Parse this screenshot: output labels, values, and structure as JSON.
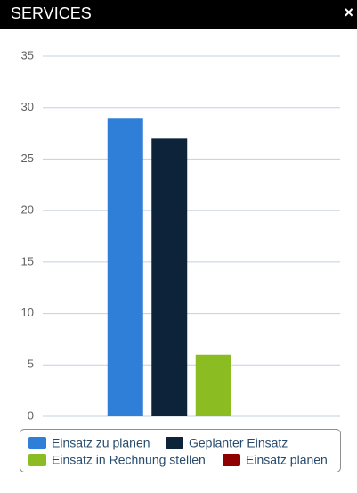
{
  "header": {
    "title": "SERVICES",
    "close": "×"
  },
  "chart_data": {
    "type": "bar",
    "categories": [
      null
    ],
    "series": [
      {
        "name": "Einsatz zu planen",
        "color": "#2f7ed8",
        "values": [
          29
        ]
      },
      {
        "name": "Geplanter Einsatz",
        "color": "#0d233a",
        "values": [
          27
        ]
      },
      {
        "name": "Einsatz in Rechnung stellen",
        "color": "#8bbc21",
        "values": [
          6
        ]
      },
      {
        "name": "Einsatz planen",
        "color": "#910000",
        "values": [
          0
        ]
      }
    ],
    "ylim": [
      0,
      35
    ],
    "yticks": [
      0,
      5,
      10,
      15,
      20,
      25,
      30,
      35
    ],
    "grid": true,
    "legend": "bottom"
  }
}
